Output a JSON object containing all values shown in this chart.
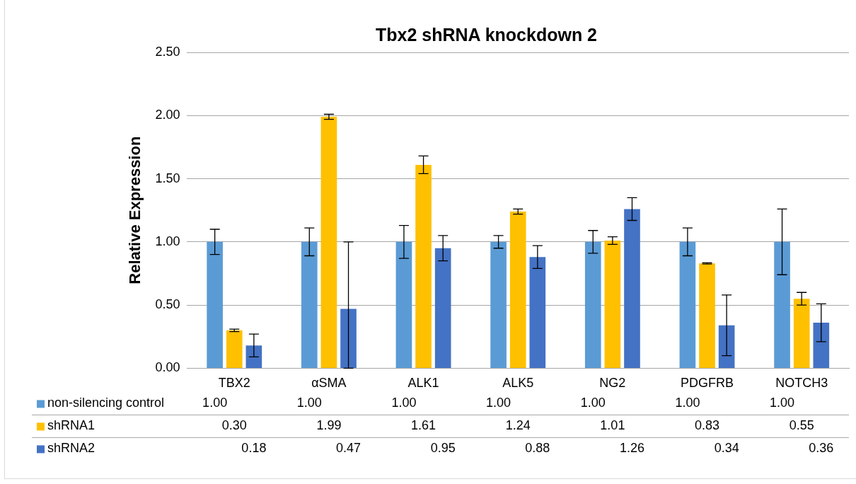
{
  "chart_data": {
    "type": "bar",
    "title": "Tbx2 shRNA knockdown 2",
    "ylabel": "Relative Expression",
    "categories": [
      "TBX2",
      "αSMA",
      "ALK1",
      "ALK5",
      "NG2",
      "PDGFRB",
      "NOTCH3"
    ],
    "series": [
      {
        "name": "non-silencing control",
        "color": "#5b9bd5",
        "values": [
          1.0,
          1.0,
          1.0,
          1.0,
          1.0,
          1.0,
          1.0
        ],
        "errors": [
          0.1,
          0.11,
          0.13,
          0.05,
          0.09,
          0.11,
          0.26
        ],
        "value_labels": [
          "1.00",
          "1.00",
          "1.00",
          "1.00",
          "1.00",
          "1.00",
          "1.00"
        ]
      },
      {
        "name": "shRNA1",
        "color": "#ffc000",
        "values": [
          0.3,
          1.99,
          1.61,
          1.24,
          1.01,
          0.83,
          0.55
        ],
        "errors": [
          0.01,
          0.02,
          0.07,
          0.02,
          0.03,
          0.005,
          0.05
        ],
        "value_labels": [
          "0.30",
          "1.99",
          "1.61",
          "1.24",
          "1.01",
          "0.83",
          "0.55"
        ]
      },
      {
        "name": "shRNA2",
        "color": "#4472c4",
        "values": [
          0.18,
          0.47,
          0.95,
          0.88,
          1.26,
          0.34,
          0.36
        ],
        "errors": [
          0.09,
          [
            0,
            1.0
          ],
          0.1,
          0.09,
          0.09,
          0.24,
          0.15
        ],
        "value_labels": [
          "0.18",
          "0.47",
          "0.95",
          "0.88",
          "1.26",
          "0.34",
          "0.36"
        ]
      }
    ],
    "ylim": [
      0,
      2.5
    ],
    "yticks": [
      {
        "value": 0,
        "label": "0.00"
      },
      {
        "value": 0.5,
        "label": "0.50"
      },
      {
        "value": 1,
        "label": "1.00"
      },
      {
        "value": 1.5,
        "label": "1.50"
      },
      {
        "value": 2,
        "label": "2.00"
      },
      {
        "value": 2.5,
        "label": "2.50"
      }
    ],
    "grid": "y",
    "legend": "bottom"
  }
}
